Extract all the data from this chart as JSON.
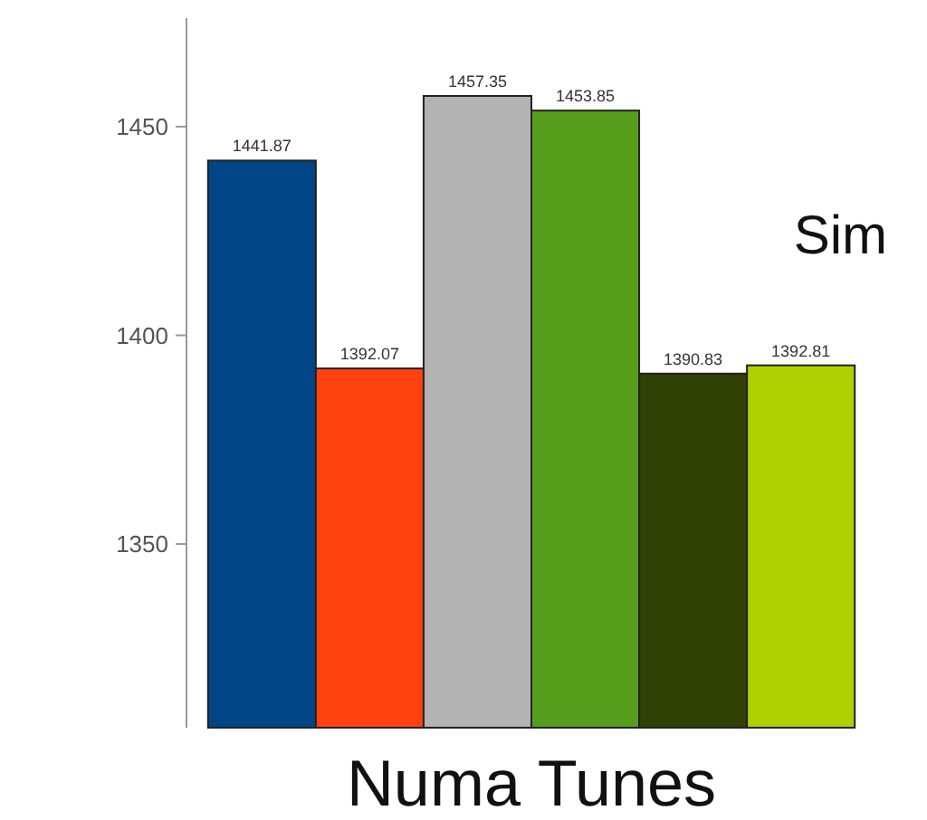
{
  "chart_data": {
    "type": "bar",
    "xlabel": "Numa Tunes",
    "annotations": [
      "Sim"
    ],
    "categories": [
      null,
      null,
      null,
      null,
      null,
      null
    ],
    "values": [
      1441.87,
      1392.07,
      1457.35,
      1453.85,
      1390.83,
      1392.81
    ],
    "colors": [
      "#004586",
      "#ff420e",
      "#b3b3b3",
      "#579d1c",
      "#314004",
      "#aecf00"
    ],
    "ylim": [
      1306,
      1476
    ],
    "yticks": [
      1350,
      1400,
      1450
    ],
    "data_labels": true
  }
}
